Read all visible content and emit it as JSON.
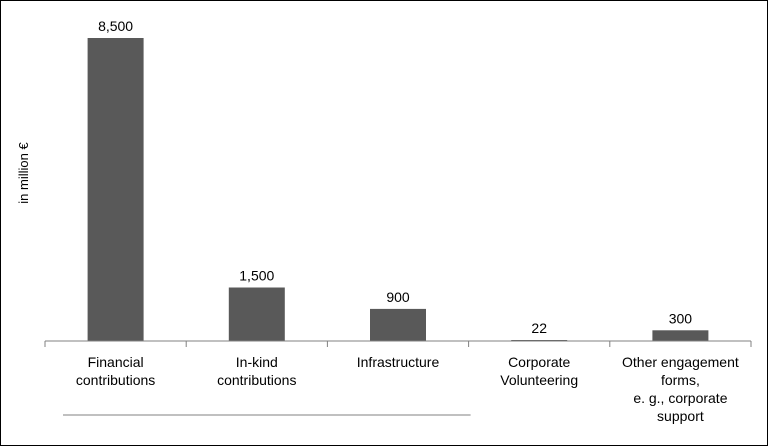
{
  "chart_data": {
    "type": "bar",
    "ylabel": "in million €",
    "categories": [
      [
        "Financial",
        "contributions"
      ],
      [
        "In-kind",
        "contributions"
      ],
      [
        "Infrastructure"
      ],
      [
        "Corporate",
        "Volunteering"
      ],
      [
        "Other engagement",
        "forms,",
        "e. g., corporate",
        "support"
      ]
    ],
    "values": [
      8500,
      1500,
      900,
      22,
      300
    ],
    "value_labels": [
      "8,500",
      "1,500",
      "900",
      "22",
      "300"
    ],
    "ylim": [
      0,
      8500
    ],
    "grid": false,
    "legend": false,
    "bar_color": "#595959",
    "axis_color": "#808080",
    "group_bracket_span": [
      0,
      2
    ]
  }
}
